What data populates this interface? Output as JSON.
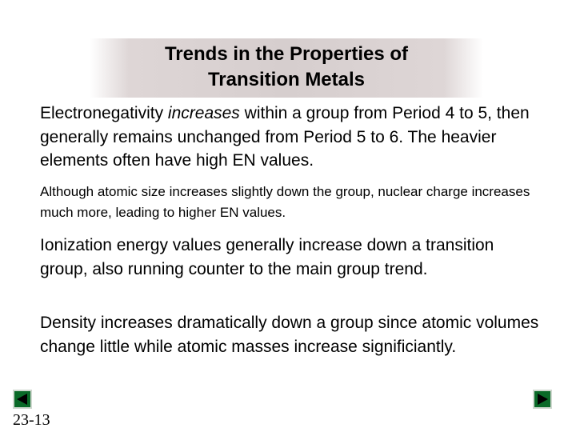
{
  "slide": {
    "title_line1": "Trends in the Properties of",
    "title_line2": "Transition Metals",
    "para1_pre": "Electronegativity ",
    "para1_em": "increases",
    "para1_post": " within a group from Period 4 to 5, then generally remains unchanged from Period 5 to 6. The heavier elements often have high EN values.",
    "para2": "Although atomic size increases slightly down the group, nuclear charge increases much more, leading to higher EN values.",
    "para3": "Ionization energy values generally increase down a transition group, also running counter to the main group trend.",
    "para4": "Density increases dramatically down a group since atomic volumes change little while atomic masses increase significiantly.",
    "slide_number": "23-13"
  },
  "nav": {
    "prev_icon": "triangle-left-icon",
    "next_icon": "triangle-right-icon",
    "arrow_color": "#0a6a28"
  }
}
